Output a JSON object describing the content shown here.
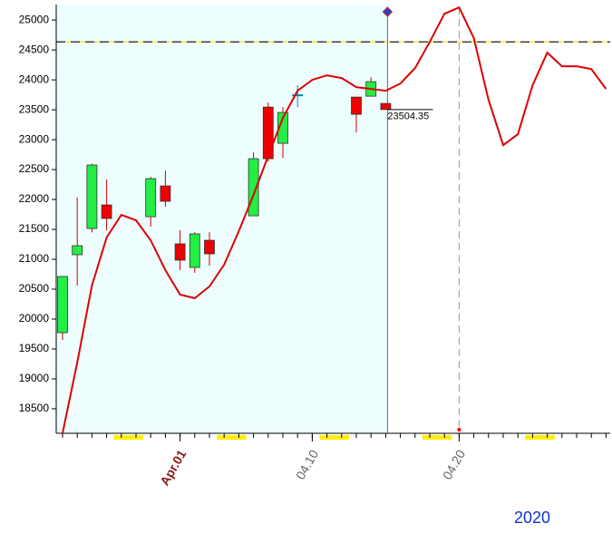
{
  "chart_data": {
    "type": "candlestick",
    "year": "2020",
    "x": [
      "03.24",
      "03.25",
      "03.26",
      "03.27",
      "03.30",
      "03.31",
      "04.01",
      "04.02",
      "04.03",
      "04.06",
      "04.07",
      "04.08",
      "04.09",
      "04.13",
      "04.14",
      "04.15"
    ],
    "open": [
      19773,
      21076,
      21515,
      21909,
      21712,
      22227,
      21258,
      20864,
      21318,
      21727,
      23545,
      22939,
      23742,
      23712,
      23727,
      23606
    ],
    "high": [
      20712,
      22030,
      22600,
      22333,
      22379,
      22485,
      21485,
      21454,
      21454,
      22788,
      23621,
      23545,
      23909,
      23712,
      24045,
      23606
    ],
    "low": [
      19650,
      20560,
      21450,
      21485,
      21545,
      21879,
      20818,
      20773,
      20894,
      21727,
      22636,
      22697,
      23545,
      23121,
      23727,
      23504.35
    ],
    "close": [
      20712,
      21227,
      22576,
      21682,
      22348,
      21970,
      20985,
      21424,
      21091,
      22682,
      22682,
      23455,
      23742,
      23424,
      23970,
      23504.35
    ],
    "up_color": "#22ee44",
    "down_color": "#ee0000",
    "doji_color": "#0088aa",
    "line": {
      "color": "#dd0000",
      "x": [
        "03.24",
        "03.25",
        "03.26",
        "03.27",
        "03.28",
        "03.29",
        "03.30",
        "03.31",
        "04.01",
        "04.02",
        "04.03",
        "04.04",
        "04.05",
        "04.06",
        "04.07",
        "04.08",
        "04.09",
        "04.10",
        "04.11",
        "04.12",
        "04.13",
        "04.14",
        "04.15",
        "04.16",
        "04.17",
        "04.18",
        "04.19",
        "04.20",
        "04.21",
        "04.22",
        "04.23",
        "04.24",
        "04.25",
        "04.26",
        "04.27",
        "04.28",
        "04.29",
        "04.30"
      ],
      "values": [
        18091,
        19273,
        20561,
        21364,
        21742,
        21652,
        21318,
        20818,
        20409,
        20348,
        20545,
        20909,
        21470,
        22076,
        22727,
        23364,
        23818,
        24000,
        24076,
        24030,
        23879,
        23848,
        23818,
        23939,
        24197,
        24636,
        25106,
        25212,
        24697,
        23667,
        22909,
        23091,
        23909,
        24455,
        24227,
        24227,
        24182,
        23848
      ]
    },
    "hline": 24636,
    "ylim": [
      18090,
      25260
    ],
    "yticks": [
      18500,
      19000,
      19500,
      20000,
      20500,
      21000,
      21500,
      22000,
      22500,
      23000,
      23500,
      24000,
      24500,
      25000
    ],
    "xticks": [
      {
        "value": "04.01",
        "label": "Apr.01"
      },
      "04.10",
      "04.20"
    ]
  }
}
